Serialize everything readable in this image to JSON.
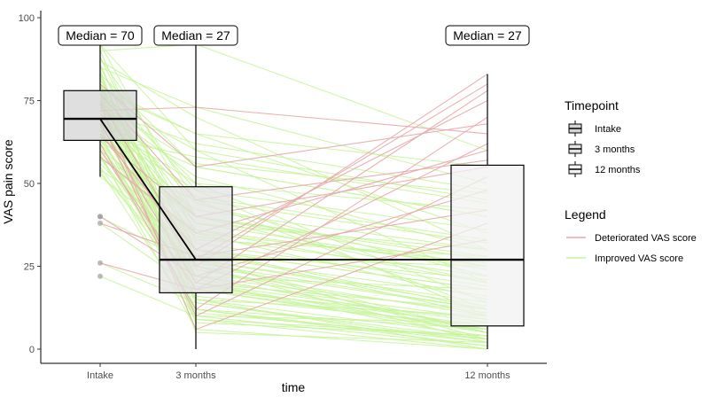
{
  "chart_data": {
    "type": "box",
    "title": "",
    "xlabel": "time",
    "ylabel": "VAS pain score",
    "ylim": [
      0,
      100
    ],
    "yticks": [
      0,
      25,
      50,
      75,
      100
    ],
    "categories": [
      "Intake",
      "3 months",
      "12 months"
    ],
    "median_labels": [
      "Median = 70",
      "Median = 27",
      "Median = 27"
    ],
    "boxes": [
      {
        "category": "Intake",
        "min": 52,
        "q1": 63,
        "median": 69.5,
        "q3": 78,
        "max": 92,
        "outliers": [
          40,
          40,
          38,
          26,
          22
        ],
        "fill": "#d4d4d4"
      },
      {
        "category": "3 months",
        "min": 0,
        "q1": 17,
        "median": 27,
        "q3": 49,
        "max": 92,
        "outliers": [],
        "fill": "#e3e3e3"
      },
      {
        "category": "12 months",
        "min": 0,
        "q1": 7,
        "median": 27,
        "q3": 55.5,
        "max": 83,
        "outliers": [],
        "fill": "#f2f2f2"
      }
    ],
    "median_path": [
      69.5,
      27,
      27
    ],
    "legend": {
      "timepoint_title": "Timepoint",
      "timepoint_items": [
        "Intake",
        "3 months",
        "12 months"
      ],
      "legend_title": "Legend",
      "line_items": [
        {
          "label": "Deteriorated VAS score",
          "color": "#e8a8ac"
        },
        {
          "label": "Improved VAS score",
          "color": "#c5f59a"
        }
      ]
    },
    "trajectories": {
      "improved": [
        [
          92,
          60,
          20
        ],
        [
          90,
          27,
          5
        ],
        [
          88,
          45,
          12
        ],
        [
          87,
          70,
          30
        ],
        [
          86,
          20,
          3
        ],
        [
          85,
          35,
          15
        ],
        [
          84,
          10,
          8
        ],
        [
          83,
          55,
          40
        ],
        [
          82,
          25,
          2
        ],
        [
          81,
          48,
          10
        ],
        [
          80,
          30,
          18
        ],
        [
          80,
          15,
          0
        ],
        [
          79,
          65,
          35
        ],
        [
          79,
          40,
          25
        ],
        [
          78,
          22,
          6
        ],
        [
          78,
          50,
          14
        ],
        [
          77,
          18,
          9
        ],
        [
          77,
          33,
          28
        ],
        [
          76,
          27,
          3
        ],
        [
          76,
          60,
          45
        ],
        [
          75,
          12,
          1
        ],
        [
          75,
          44,
          22
        ],
        [
          74,
          28,
          16
        ],
        [
          74,
          8,
          4
        ],
        [
          73,
          36,
          20
        ],
        [
          73,
          52,
          30
        ],
        [
          72,
          20,
          12
        ],
        [
          72,
          62,
          48
        ],
        [
          71,
          25,
          5
        ],
        [
          71,
          40,
          27
        ],
        [
          70,
          14,
          2
        ],
        [
          70,
          46,
          33
        ],
        [
          70,
          30,
          10
        ],
        [
          69,
          9,
          0
        ],
        [
          69,
          38,
          24
        ],
        [
          68,
          22,
          11
        ],
        [
          68,
          55,
          40
        ],
        [
          67,
          16,
          7
        ],
        [
          67,
          32,
          19
        ],
        [
          66,
          27,
          14
        ],
        [
          66,
          48,
          36
        ],
        [
          65,
          11,
          3
        ],
        [
          65,
          35,
          26
        ],
        [
          64,
          20,
          8
        ],
        [
          64,
          58,
          44
        ],
        [
          63,
          26,
          12
        ],
        [
          63,
          42,
          30
        ],
        [
          62,
          18,
          5
        ],
        [
          62,
          30,
          21
        ],
        [
          61,
          12,
          2
        ],
        [
          60,
          40,
          28
        ],
        [
          60,
          24,
          10
        ],
        [
          59,
          6,
          0
        ],
        [
          58,
          34,
          22
        ],
        [
          58,
          19,
          7
        ],
        [
          57,
          45,
          32
        ],
        [
          56,
          27,
          13
        ],
        [
          55,
          15,
          4
        ],
        [
          54,
          36,
          25
        ],
        [
          53,
          21,
          9
        ],
        [
          52,
          30,
          18
        ],
        [
          40,
          25,
          12
        ],
        [
          38,
          18,
          6
        ],
        [
          26,
          14,
          3
        ],
        [
          22,
          10,
          1
        ],
        [
          90,
          92,
          60
        ],
        [
          85,
          73,
          50
        ],
        [
          78,
          65,
          55
        ],
        [
          74,
          56,
          47
        ],
        [
          68,
          50,
          42
        ],
        [
          92,
          40,
          20
        ],
        [
          88,
          30,
          12
        ],
        [
          83,
          20,
          5
        ],
        [
          80,
          5,
          2
        ],
        [
          76,
          38,
          30
        ],
        [
          72,
          28,
          25
        ],
        [
          66,
          22,
          18
        ],
        [
          62,
          15,
          10
        ],
        [
          58,
          12,
          6
        ],
        [
          54,
          9,
          4
        ]
      ],
      "deteriorated": [
        [
          75,
          27,
          80
        ],
        [
          70,
          25,
          83
        ],
        [
          68,
          20,
          78
        ],
        [
          65,
          30,
          75
        ],
        [
          62,
          12,
          70
        ],
        [
          80,
          55,
          68
        ],
        [
          72,
          73,
          65
        ],
        [
          60,
          18,
          62
        ],
        [
          58,
          35,
          60
        ],
        [
          77,
          45,
          57
        ],
        [
          40,
          22,
          48
        ],
        [
          38,
          28,
          42
        ],
        [
          26,
          18,
          33
        ],
        [
          69,
          10,
          52
        ],
        [
          64,
          40,
          55
        ],
        [
          74,
          6,
          38
        ]
      ]
    }
  }
}
